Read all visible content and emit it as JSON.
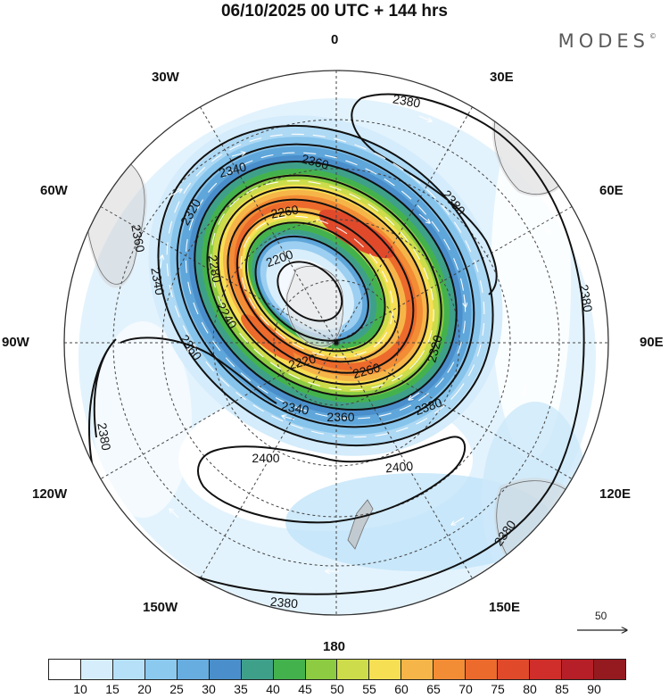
{
  "title": "06/10/2025  00 UTC  + 144 hrs",
  "brand": "MODES",
  "brand_mark": "©",
  "longitude_labels": {
    "top": "0",
    "bottom": "180",
    "left": "90W",
    "right": "90E",
    "w30": "30W",
    "w60": "60W",
    "w120": "120W",
    "w150": "150W",
    "e30": "30E",
    "e60": "60E",
    "e120": "120E",
    "e150": "150E"
  },
  "contour_labels": [
    "2380",
    "2360",
    "2340",
    "2320",
    "2300",
    "2280",
    "2260",
    "2240",
    "2220",
    "2200",
    "2400"
  ],
  "scale": {
    "label": "50"
  },
  "colorbar": {
    "colors": [
      "#ffffff",
      "#d6eefc",
      "#b6e0f7",
      "#8cc9ef",
      "#67ade0",
      "#4a8fcb",
      "#3fa08a",
      "#44b24c",
      "#8ccb42",
      "#cddc4a",
      "#f7df54",
      "#f6b548",
      "#f28c35",
      "#ec6a2c",
      "#e04a2b",
      "#cf2e2a",
      "#b61f27",
      "#951a1f"
    ],
    "ticks": [
      "10",
      "15",
      "20",
      "25",
      "30",
      "35",
      "40",
      "45",
      "50",
      "55",
      "60",
      "65",
      "70",
      "75",
      "80",
      "85",
      "90"
    ]
  }
}
